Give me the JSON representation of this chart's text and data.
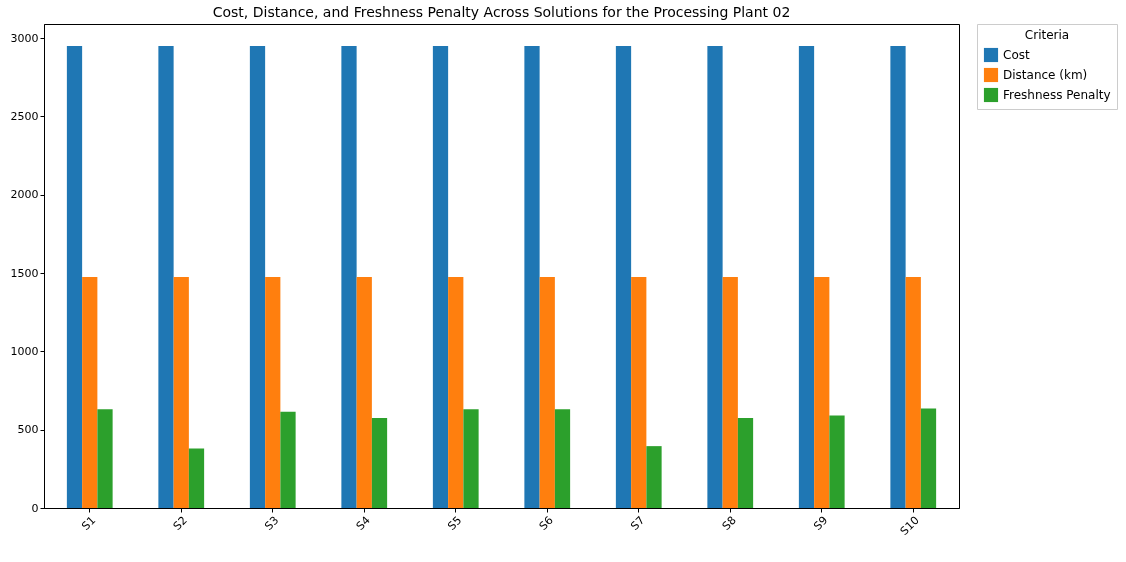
{
  "chart_data": {
    "type": "bar",
    "title": "Cost, Distance, and Freshness Penalty Across Solutions for the Processing Plant 02",
    "categories": [
      "S1",
      "S2",
      "S3",
      "S4",
      "S5",
      "S6",
      "S7",
      "S8",
      "S9",
      "S10"
    ],
    "series": [
      {
        "name": "Cost",
        "color": "#1f77b4",
        "values": [
          2950,
          2950,
          2950,
          2950,
          2950,
          2950,
          2950,
          2950,
          2950,
          2950
        ]
      },
      {
        "name": "Distance (km)",
        "color": "#ff7f0e",
        "values": [
          1475,
          1475,
          1475,
          1475,
          1475,
          1475,
          1475,
          1475,
          1475,
          1475
        ]
      },
      {
        "name": "Freshness Penalty",
        "color": "#2ca02c",
        "values": [
          630,
          380,
          615,
          575,
          630,
          630,
          395,
          575,
          590,
          635
        ]
      }
    ],
    "ylim": [
      0,
      3090
    ],
    "yticks": [
      0,
      500,
      1000,
      1500,
      2000,
      2500,
      3000
    ],
    "legend": "top right",
    "legend_title": "Criteria",
    "grid": false
  }
}
